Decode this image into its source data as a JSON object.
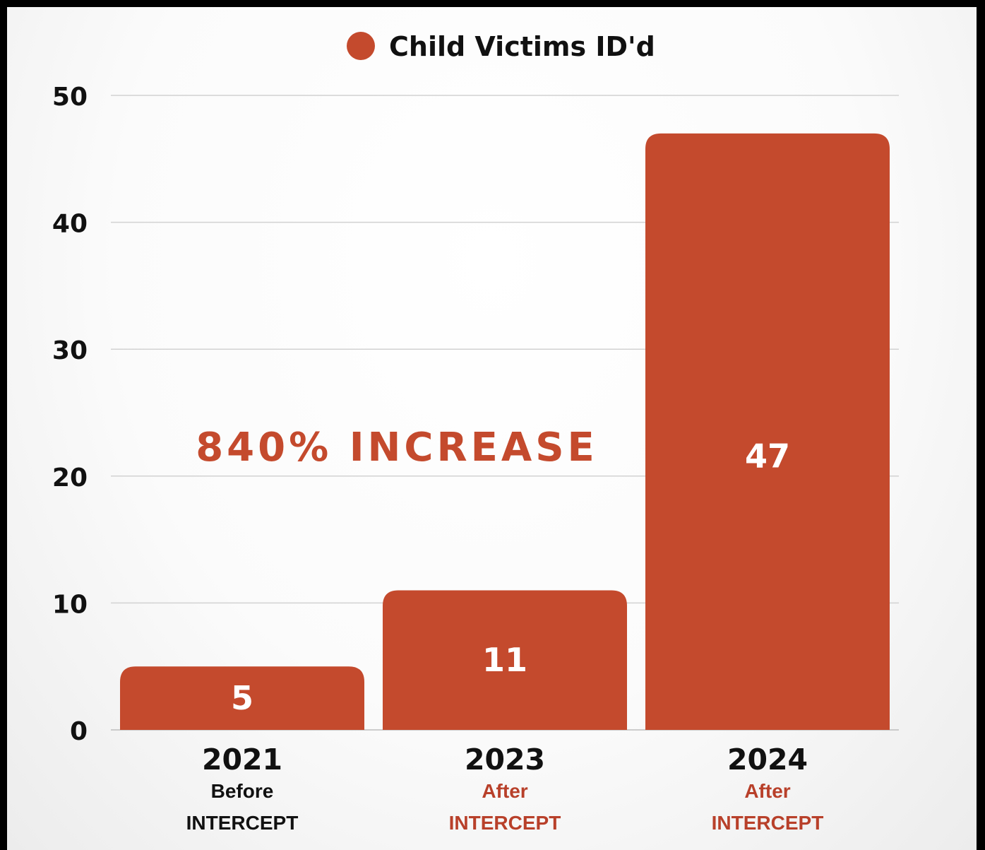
{
  "chart_data": {
    "type": "bar",
    "categories": [
      "2021",
      "2023",
      "2024"
    ],
    "category_sublabels": [
      {
        "line1": "Before",
        "line2": "INTERCEPT",
        "color": "#111111"
      },
      {
        "line1": "After",
        "line2": "INTERCEPT",
        "color": "#b8402a"
      },
      {
        "line1": "After",
        "line2": "INTERCEPT",
        "color": "#b8402a"
      }
    ],
    "series": [
      {
        "name": "Child Victims ID'd",
        "values": [
          5,
          11,
          47
        ],
        "color": "#c44a2d"
      }
    ],
    "data_labels": [
      "5",
      "11",
      "47"
    ],
    "yticks": [
      0,
      10,
      20,
      30,
      40,
      50
    ],
    "ylim": [
      0,
      50
    ],
    "annotation": "840% INCREASE",
    "annotation_color": "#c44a2d",
    "grid": true,
    "legend_position": "top-center"
  }
}
